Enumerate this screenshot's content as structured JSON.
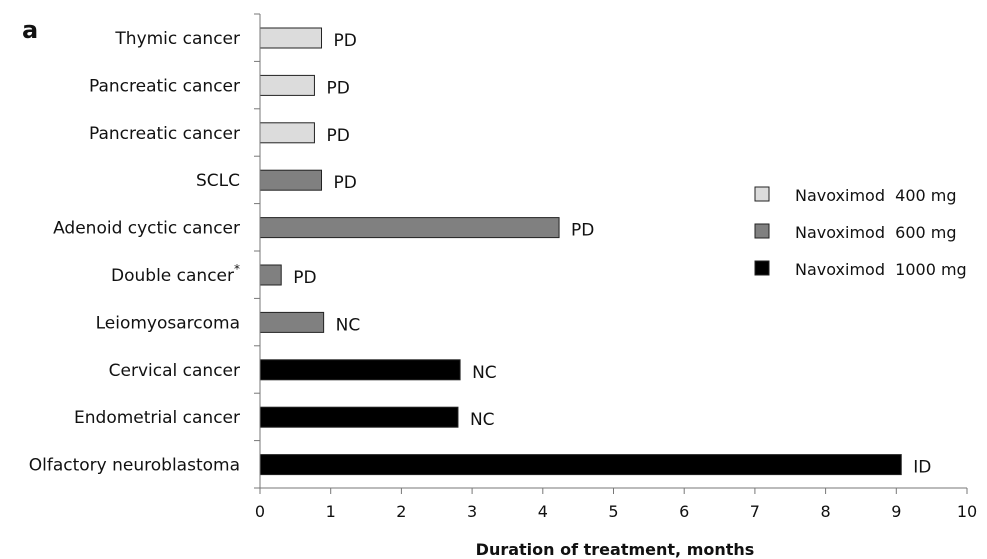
{
  "panel_label": "a",
  "colors": {
    "navoximod_400": "#dcdcdc",
    "navoximod_600": "#808080",
    "navoximod_1000": "#000000"
  },
  "chart_data": {
    "type": "bar",
    "orientation": "horizontal",
    "xlabel": "Duration of treatment, months",
    "ylabel": "",
    "xlim": [
      0,
      10
    ],
    "x_ticks": [
      "0",
      "1",
      "2",
      "3",
      "4",
      "5",
      "6",
      "7",
      "8",
      "9",
      "10"
    ],
    "grid": false,
    "legend_placement": "right",
    "legend": [
      {
        "name": "Navoximod  400 mg",
        "color": "#dcdcdc"
      },
      {
        "name": "Navoximod  600 mg",
        "color": "#808080"
      },
      {
        "name": "Navoximod  1000 mg",
        "color": "#000000"
      }
    ],
    "bars": [
      {
        "category": "Thymic cancer",
        "superscript": "",
        "value": 0.87,
        "label": "PD",
        "group": 0
      },
      {
        "category": "Pancreatic cancer",
        "superscript": "",
        "value": 0.77,
        "label": "PD",
        "group": 0
      },
      {
        "category": "Pancreatic cancer",
        "superscript": "",
        "value": 0.77,
        "label": "PD",
        "group": 0
      },
      {
        "category": "SCLC",
        "superscript": "",
        "value": 0.87,
        "label": "PD",
        "group": 1
      },
      {
        "category": "Adenoid cyctic cancer",
        "superscript": "",
        "value": 4.23,
        "label": "PD",
        "group": 1
      },
      {
        "category": "Double cancer",
        "superscript": "*",
        "value": 0.3,
        "label": "PD",
        "group": 1
      },
      {
        "category": "Leiomyosarcoma",
        "superscript": "",
        "value": 0.9,
        "label": "NC",
        "group": 1
      },
      {
        "category": "Cervical cancer",
        "superscript": "",
        "value": 2.83,
        "label": "NC",
        "group": 2
      },
      {
        "category": "Endometrial cancer",
        "superscript": "",
        "value": 2.8,
        "label": "NC",
        "group": 2
      },
      {
        "category": "Olfactory neuroblastoma",
        "superscript": "",
        "value": 9.07,
        "label": "ID",
        "group": 2
      }
    ]
  }
}
